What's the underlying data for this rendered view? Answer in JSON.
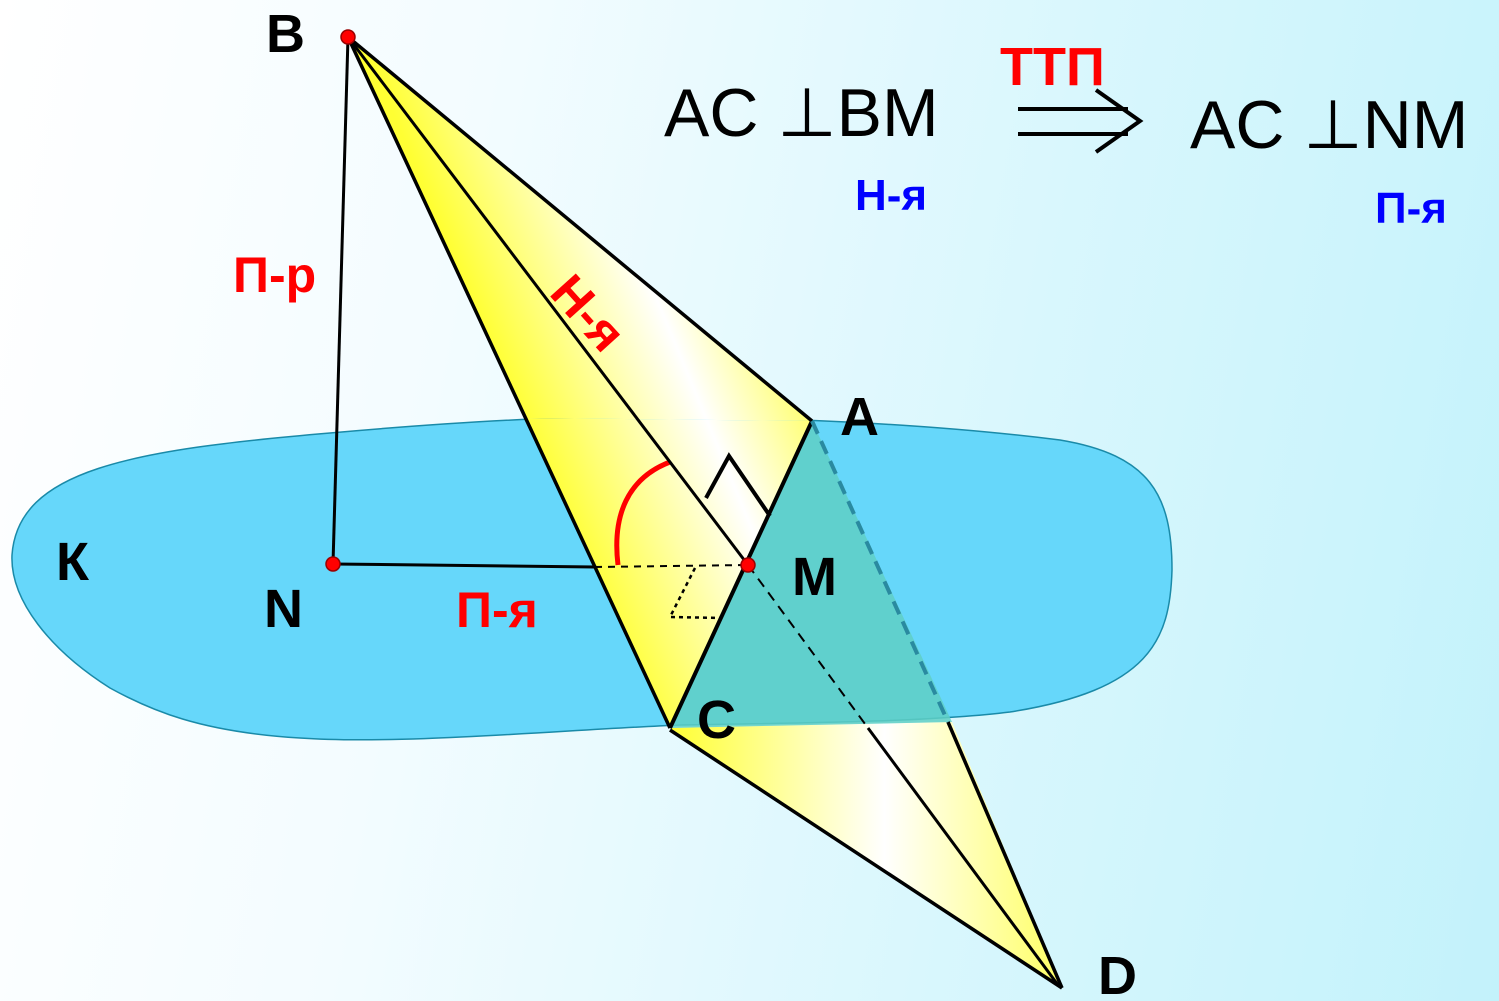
{
  "points": {
    "B": "B",
    "A": "A",
    "M": "M",
    "N": "N",
    "C": "C",
    "D": "D",
    "K": "К"
  },
  "edge_labels": {
    "perpendicular": "П-р",
    "inclined": "Н-я",
    "projection": "П-я"
  },
  "formula": {
    "left": "AC ⊥BM",
    "left_caption": "Н-я",
    "arrow_label": "ТТП",
    "right": "AC ⊥NM",
    "right_caption": "П-я"
  },
  "colors": {
    "plane": "#66d7fa",
    "triangle_yellow": "#ffff33",
    "point_red": "#ff0000",
    "label_red": "#ff0000",
    "label_blue": "#0000ff"
  }
}
